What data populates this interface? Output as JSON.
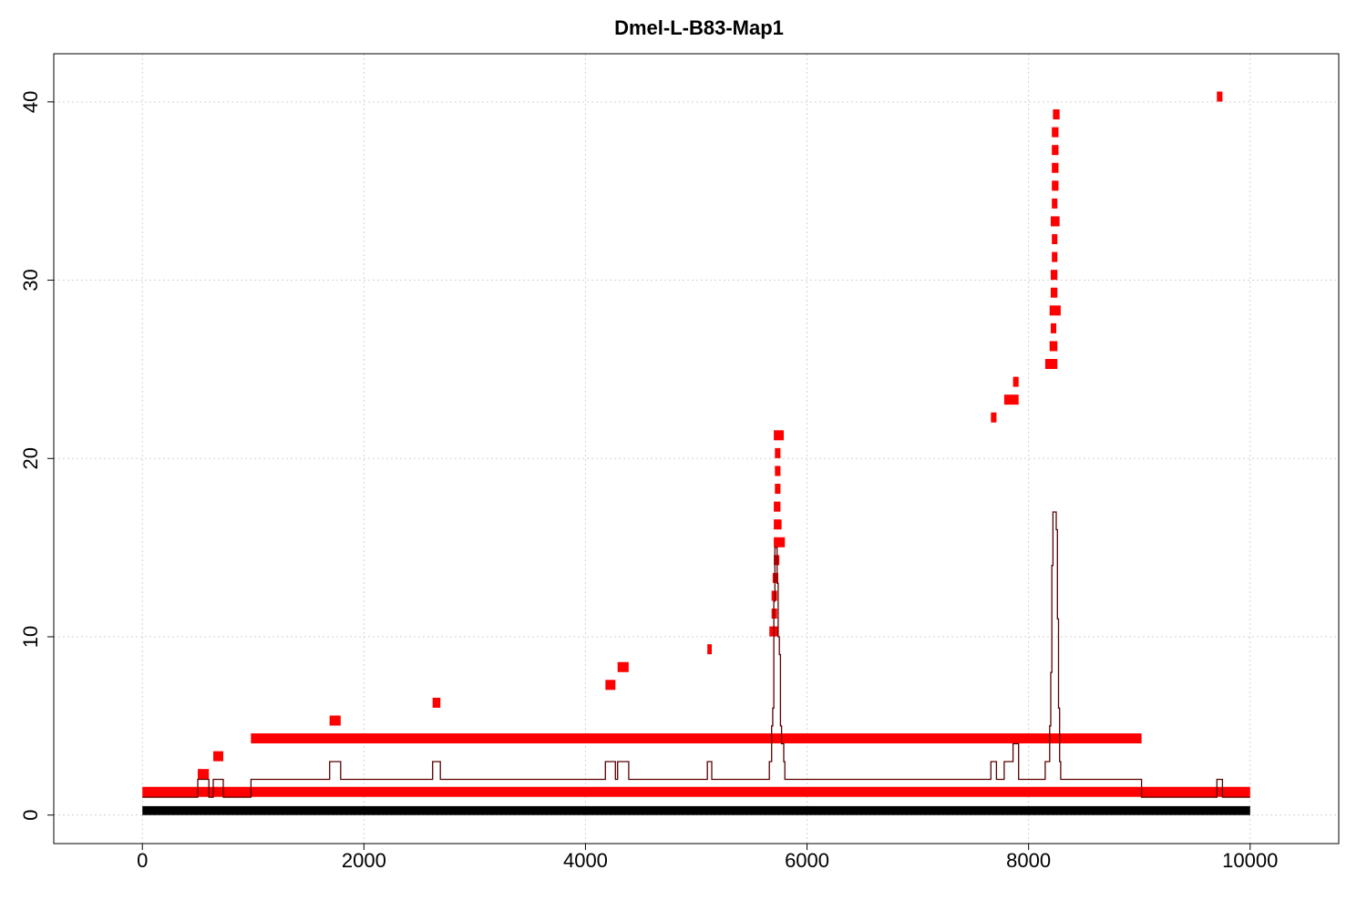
{
  "chart_data": {
    "type": "line",
    "title": "Dmel-L-B83-Map1",
    "xlabel": "",
    "ylabel": "",
    "xlim": [
      -800,
      10800
    ],
    "ylim": [
      -1.6,
      42.7
    ],
    "x_ticks": [
      0,
      2000,
      4000,
      6000,
      8000,
      10000
    ],
    "y_ticks": [
      0,
      10,
      20,
      30,
      40
    ],
    "grid": true,
    "colors": {
      "segments": "#ff0000",
      "reference": "#000000",
      "coverage": "#5a0000",
      "grid": "#d3d3d3"
    },
    "reference_bar": {
      "x0": 0,
      "x1": 10000,
      "y0": 0.0,
      "y1": 0.5
    },
    "segments": [
      {
        "x0": 0,
        "x1": 10000,
        "y": 1.3
      },
      {
        "x0": 980,
        "x1": 9020,
        "y": 4.3
      },
      {
        "x0": 500,
        "x1": 600,
        "y": 2.3
      },
      {
        "x0": 640,
        "x1": 730,
        "y": 3.3
      },
      {
        "x0": 1690,
        "x1": 1790,
        "y": 5.3
      },
      {
        "x0": 2620,
        "x1": 2690,
        "y": 6.3
      },
      {
        "x0": 4180,
        "x1": 4270,
        "y": 7.3
      },
      {
        "x0": 4290,
        "x1": 4390,
        "y": 8.3
      },
      {
        "x0": 5100,
        "x1": 5140,
        "y": 9.3
      },
      {
        "x0": 5660,
        "x1": 5740,
        "y": 10.3
      },
      {
        "x0": 5680,
        "x1": 5730,
        "y": 11.3
      },
      {
        "x0": 5680,
        "x1": 5730,
        "y": 12.3
      },
      {
        "x0": 5690,
        "x1": 5740,
        "y": 13.3
      },
      {
        "x0": 5700,
        "x1": 5750,
        "y": 14.3
      },
      {
        "x0": 5700,
        "x1": 5800,
        "y": 15.3
      },
      {
        "x0": 5700,
        "x1": 5770,
        "y": 16.3
      },
      {
        "x0": 5700,
        "x1": 5760,
        "y": 17.3
      },
      {
        "x0": 5710,
        "x1": 5760,
        "y": 18.3
      },
      {
        "x0": 5710,
        "x1": 5760,
        "y": 19.3
      },
      {
        "x0": 5710,
        "x1": 5760,
        "y": 20.3
      },
      {
        "x0": 5700,
        "x1": 5790,
        "y": 21.3
      },
      {
        "x0": 7660,
        "x1": 7710,
        "y": 22.3
      },
      {
        "x0": 7780,
        "x1": 7910,
        "y": 23.3
      },
      {
        "x0": 7860,
        "x1": 7910,
        "y": 24.3
      },
      {
        "x0": 8150,
        "x1": 8260,
        "y": 25.3
      },
      {
        "x0": 8190,
        "x1": 8260,
        "y": 26.3
      },
      {
        "x0": 8200,
        "x1": 8250,
        "y": 27.3
      },
      {
        "x0": 8190,
        "x1": 8290,
        "y": 28.3
      },
      {
        "x0": 8200,
        "x1": 8260,
        "y": 29.3
      },
      {
        "x0": 8200,
        "x1": 8260,
        "y": 30.3
      },
      {
        "x0": 8210,
        "x1": 8260,
        "y": 31.3
      },
      {
        "x0": 8210,
        "x1": 8260,
        "y": 32.3
      },
      {
        "x0": 8200,
        "x1": 8280,
        "y": 33.3
      },
      {
        "x0": 8210,
        "x1": 8260,
        "y": 34.3
      },
      {
        "x0": 8210,
        "x1": 8270,
        "y": 35.3
      },
      {
        "x0": 8210,
        "x1": 8270,
        "y": 36.3
      },
      {
        "x0": 8210,
        "x1": 8270,
        "y": 37.3
      },
      {
        "x0": 8210,
        "x1": 8270,
        "y": 38.3
      },
      {
        "x0": 8220,
        "x1": 8280,
        "y": 39.3
      },
      {
        "x0": 9700,
        "x1": 9750,
        "y": 40.3
      }
    ],
    "coverage": {
      "x": [
        0,
        500,
        500,
        600,
        600,
        640,
        640,
        730,
        730,
        980,
        980,
        1690,
        1690,
        1790,
        1790,
        2620,
        2620,
        2690,
        2690,
        4180,
        4180,
        4270,
        4270,
        4290,
        4290,
        4390,
        4390,
        5100,
        5100,
        5140,
        5140,
        5660,
        5660,
        5680,
        5680,
        5690,
        5690,
        5700,
        5700,
        5710,
        5710,
        5730,
        5730,
        5740,
        5740,
        5750,
        5750,
        5760,
        5760,
        5770,
        5770,
        5790,
        5790,
        5800,
        5800,
        7660,
        7660,
        7710,
        7710,
        7780,
        7780,
        7860,
        7860,
        7910,
        7910,
        8150,
        8150,
        8190,
        8190,
        8200,
        8200,
        8210,
        8210,
        8220,
        8220,
        8250,
        8250,
        8260,
        8260,
        8270,
        8270,
        8280,
        8280,
        8290,
        8290,
        9020,
        9020,
        9700,
        9700,
        9750,
        9750,
        10000
      ],
      "y": [
        1,
        1,
        2,
        2,
        1,
        1,
        2,
        2,
        1,
        1,
        2,
        2,
        3,
        3,
        2,
        2,
        3,
        3,
        2,
        2,
        3,
        3,
        2,
        2,
        3,
        3,
        2,
        2,
        3,
        3,
        2,
        2,
        3,
        3,
        5,
        5,
        6,
        6,
        12,
        12,
        15,
        15,
        13,
        13,
        10,
        10,
        9,
        9,
        5,
        5,
        4,
        4,
        3,
        3,
        2,
        2,
        3,
        3,
        2,
        2,
        3,
        3,
        4,
        4,
        2,
        2,
        3,
        3,
        5,
        5,
        8,
        8,
        14,
        14,
        17,
        17,
        16,
        16,
        11,
        11,
        6,
        6,
        3,
        3,
        2,
        2,
        1,
        1,
        2,
        2,
        1,
        1
      ]
    }
  }
}
